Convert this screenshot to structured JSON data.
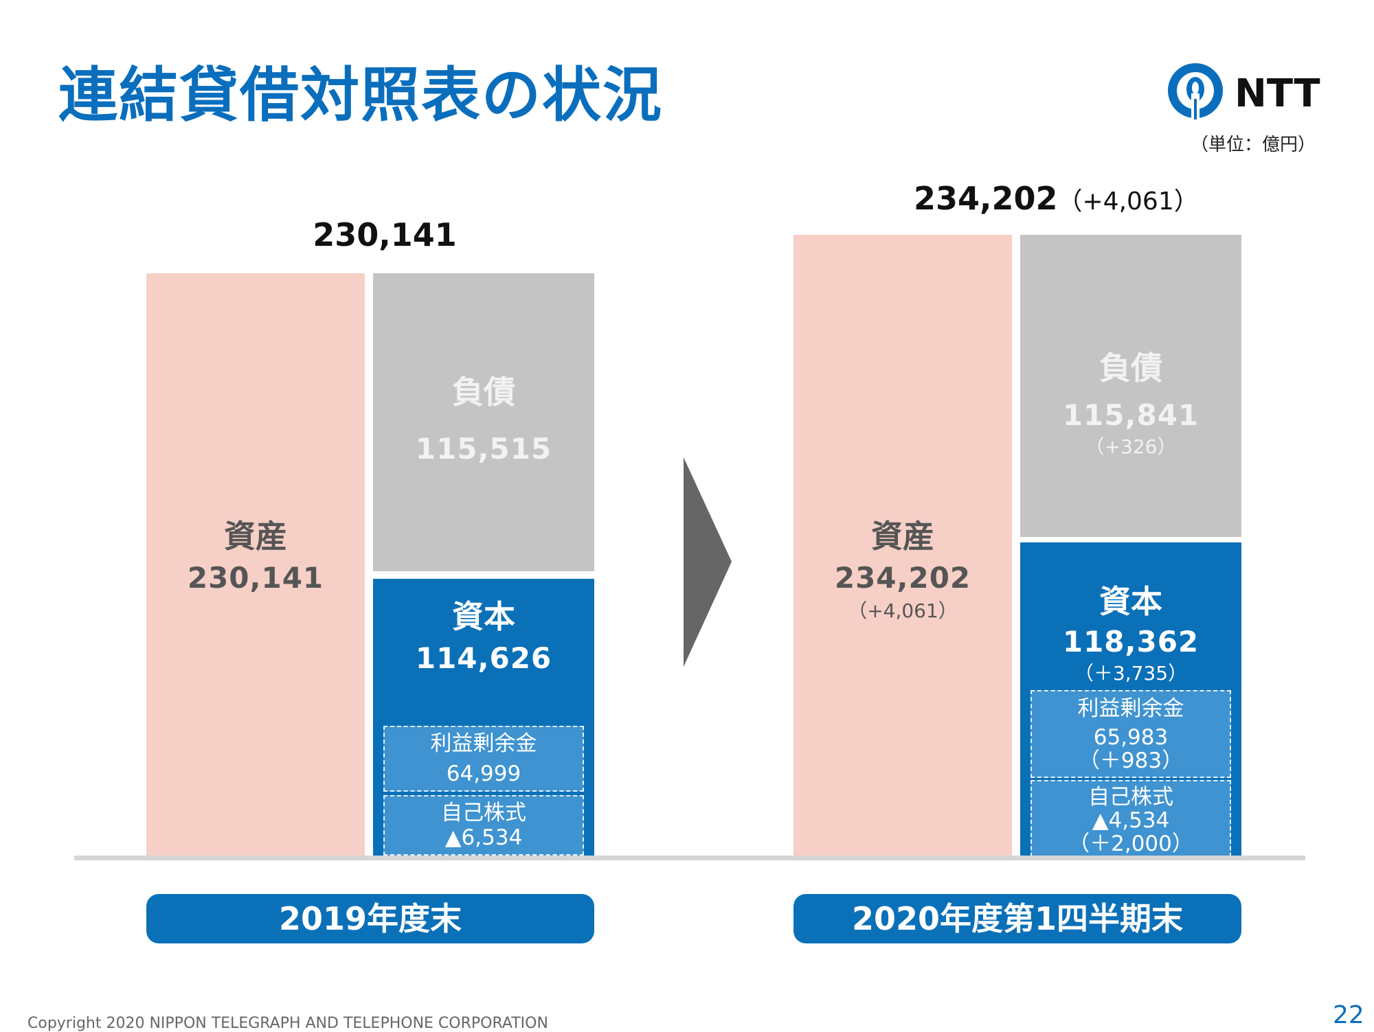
{
  "page": {
    "title": "連結貸借対照表の状況",
    "unit": "（単位：億円）",
    "brand": "NTT",
    "footer": "Copyright 2020 NIPPON TELEGRAPH AND TELEPHONE CORPORATION",
    "page_number": "22"
  },
  "colors": {
    "asset": "#f6cfc6",
    "liability": "#c4c4c4",
    "equity": "#0a70b8",
    "brand": "#0a6ebd"
  },
  "chart_data": [
    {
      "type": "bar",
      "period": "2019年度末",
      "total_label": "230,141",
      "total": 230141,
      "assets": {
        "label": "資産",
        "value_text": "230,141",
        "value": 230141
      },
      "liabilities": {
        "label": "負債",
        "value_text": "115,515",
        "value": 115515
      },
      "equity": {
        "label": "資本",
        "value_text": "114,626",
        "value": 114626,
        "retained_earnings": {
          "label": "利益剰余金",
          "value_text": "64,999",
          "value": 64999
        },
        "treasury_stock": {
          "label": "自己株式",
          "value_text": "▲6,534",
          "value": -6534
        }
      }
    },
    {
      "type": "bar",
      "period": "2020年度第1四半期末",
      "total_label": "234,202",
      "total_change": "（+4,061）",
      "total": 234202,
      "assets": {
        "label": "資産",
        "value_text": "234,202",
        "change": "（+4,061）",
        "value": 234202
      },
      "liabilities": {
        "label": "負債",
        "value_text": "115,841",
        "change": "（+326）",
        "value": 115841
      },
      "equity": {
        "label": "資本",
        "value_text": "118,362",
        "change": "（＋3,735）",
        "value": 118362,
        "retained_earnings": {
          "label": "利益剰余金",
          "value_text": "65,983",
          "change": "（＋983）",
          "value": 65983
        },
        "treasury_stock": {
          "label": "自己株式",
          "value_text": "▲4,534",
          "change": "（＋2,000）",
          "value": -4534
        }
      }
    }
  ]
}
